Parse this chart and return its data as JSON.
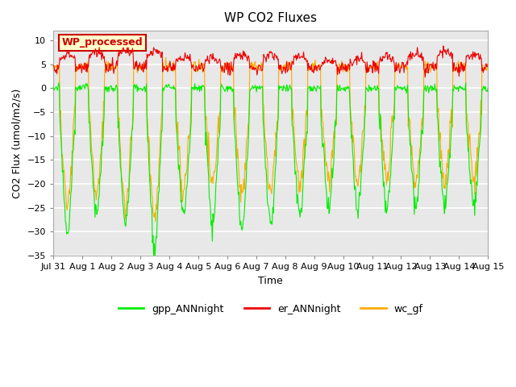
{
  "title": "WP CO2 Fluxes",
  "xlabel": "Time",
  "ylabel_display": "CO2 Flux (umol/m2/s)",
  "ylim": [
    -35,
    12
  ],
  "yticks": [
    -35,
    -30,
    -25,
    -20,
    -15,
    -10,
    -5,
    0,
    5,
    10
  ],
  "legend_labels": [
    "gpp_ANNnight",
    "er_ANNnight",
    "wc_gf"
  ],
  "legend_colors": [
    "#00ee00",
    "#ee0000",
    "#ffaa00"
  ],
  "watermark_text": "WP_processed",
  "watermark_bg": "#ffffcc",
  "watermark_fg": "#cc0000",
  "n_days": 15,
  "points_per_day": 48,
  "background_color": "#ffffff",
  "plot_bg_color": "#e8e8e8",
  "grid_color": "#ffffff",
  "line_color_gpp": "#00ee00",
  "line_color_er": "#ee0000",
  "line_color_wc": "#ffaa00",
  "title_fontsize": 11,
  "axis_label_fontsize": 9,
  "tick_fontsize": 8
}
